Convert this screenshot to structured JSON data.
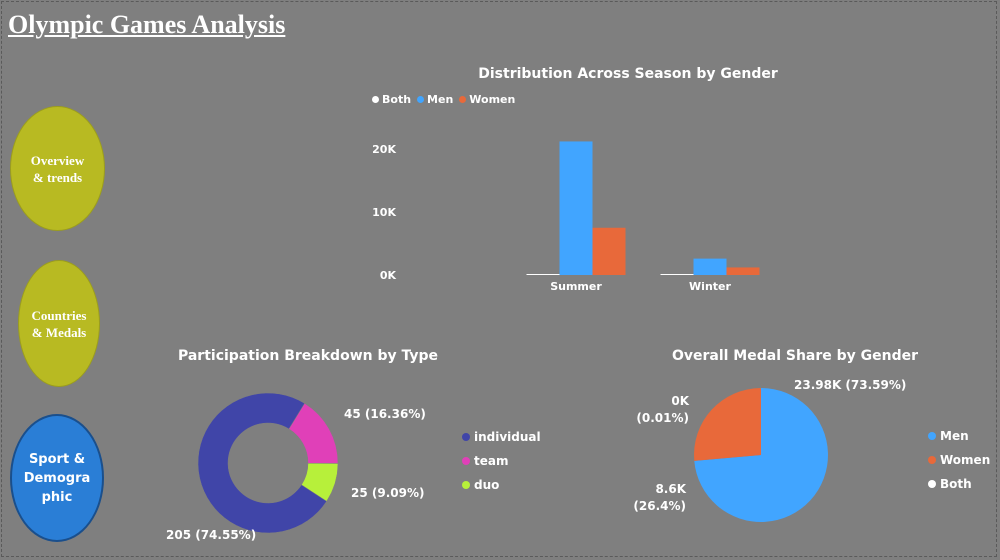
{
  "page_title": "Olympic Games Analysis",
  "nav": [
    {
      "label": "Overview\n& trends"
    },
    {
      "label": "Countries\n& Medals"
    },
    {
      "label": "Sport &\nDemogra\nphic"
    }
  ],
  "colors": {
    "men": "#41a5ff",
    "women": "#e8693a",
    "both": "#ffffff",
    "individual": "#4045a8",
    "team": "#e040b8",
    "duo": "#b7f03a",
    "nav_olive": "#b8ba22",
    "nav_active": "#2a7ed6"
  },
  "chart_data": [
    {
      "type": "bar",
      "title": "Distribution Across Season by Gender",
      "categories": [
        "Summer",
        "Winter"
      ],
      "series": [
        {
          "name": "Both",
          "values": [
            0,
            0.05
          ]
        },
        {
          "name": "Men",
          "values": [
            21.2,
            2.6
          ]
        },
        {
          "name": "Women",
          "values": [
            7.5,
            1.2
          ]
        }
      ],
      "yticks": [
        "0K",
        "10K",
        "20K"
      ],
      "ylim": [
        0,
        22
      ],
      "legend_position": "top-left"
    },
    {
      "type": "pie",
      "title": "Participation Breakdown by Type",
      "donut": true,
      "slices": [
        {
          "name": "individual",
          "value": 205,
          "label": "205 (74.55%)"
        },
        {
          "name": "team",
          "value": 45,
          "label": "45 (16.36%)"
        },
        {
          "name": "duo",
          "value": 25,
          "label": "25 (9.09%)"
        }
      ],
      "legend_position": "right"
    },
    {
      "type": "pie",
      "title": "Overall Medal Share by Gender",
      "slices": [
        {
          "name": "Men",
          "value": 23.98,
          "label_value": "23.98K",
          "label_pct": "(73.59%)"
        },
        {
          "name": "Women",
          "value": 8.6,
          "label_value": "8.6K",
          "label_pct": "(26.4%)"
        },
        {
          "name": "Both",
          "value": 0.003,
          "label_value": "0K",
          "label_pct": "(0.01%)"
        }
      ],
      "legend_position": "right"
    }
  ]
}
